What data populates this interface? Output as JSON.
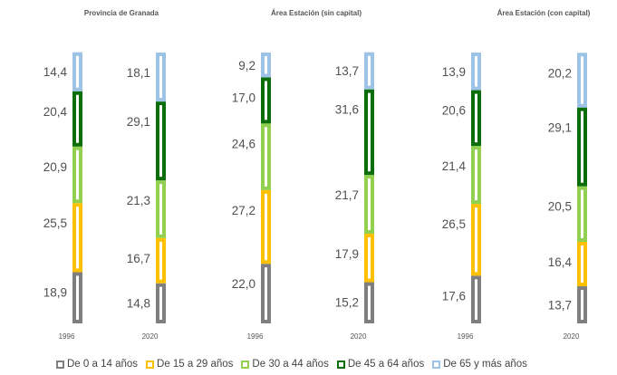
{
  "chart_data": {
    "type": "bar",
    "stacked": true,
    "groups": [
      {
        "title": "Provincia de Granada",
        "categories": [
          "1996",
          "2020"
        ]
      },
      {
        "title": "Área Estación (sin capital)",
        "categories": [
          "1996",
          "2020"
        ]
      },
      {
        "title": "Área Estación (con capital)",
        "categories": [
          "1996",
          "2020"
        ]
      }
    ],
    "series": [
      {
        "name": "De 0 a 14 años",
        "color": "#7f7f7f",
        "values": [
          18.9,
          14.8,
          22.0,
          15.2,
          17.6,
          13.7
        ],
        "labels": [
          "18,9",
          "14,8",
          "22,0",
          "15,2",
          "17,6",
          "13,7"
        ]
      },
      {
        "name": "De 15 a 29 años",
        "color": "#ffc000",
        "values": [
          25.5,
          16.7,
          27.2,
          17.9,
          26.5,
          16.4
        ],
        "labels": [
          "25,5",
          "16,7",
          "27,2",
          "17,9",
          "26,5",
          "16,4"
        ]
      },
      {
        "name": "De 30 a 44 años",
        "color": "#92d050",
        "values": [
          20.9,
          21.3,
          24.6,
          21.7,
          21.4,
          20.5
        ],
        "labels": [
          "20,9",
          "21,3",
          "24,6",
          "21,7",
          "21,4",
          "20,5"
        ]
      },
      {
        "name": "De 45 a 64 años",
        "color": "#0b6e0b",
        "values": [
          20.4,
          29.1,
          17.0,
          31.6,
          20.6,
          29.1
        ],
        "labels": [
          "20,4",
          "29,1",
          "17,0",
          "31,6",
          "20,6",
          "29,1"
        ]
      },
      {
        "name": "De 65 y más años",
        "color": "#9dc3e6",
        "values": [
          14.4,
          18.1,
          9.2,
          13.7,
          13.9,
          20.2
        ],
        "labels": [
          "14,4",
          "18,1",
          "9,2",
          "13,7",
          "13,9",
          "20,2"
        ]
      }
    ],
    "legend_position": "bottom",
    "grid": false
  }
}
